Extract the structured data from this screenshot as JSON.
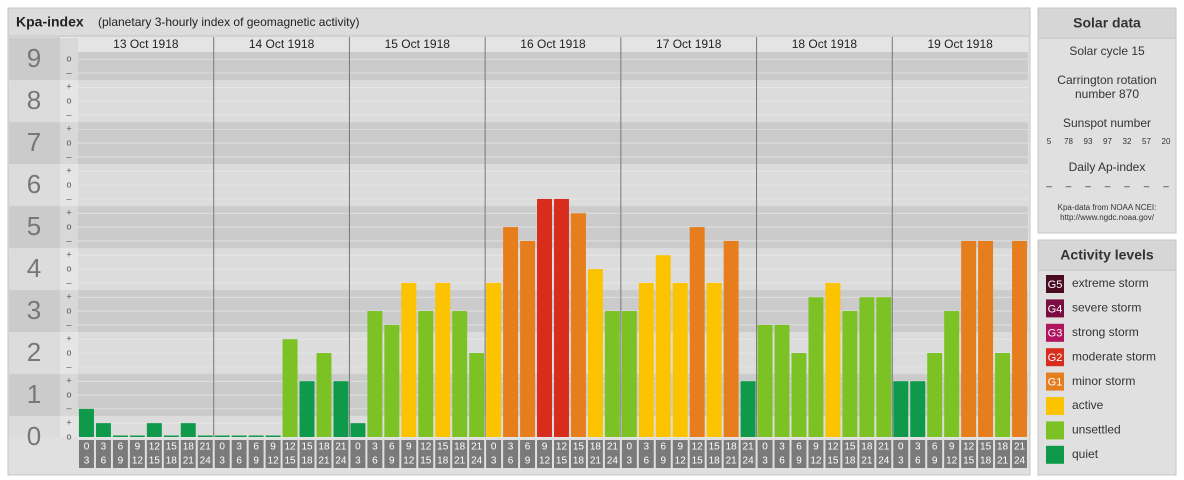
{
  "chart_data": {
    "type": "bar",
    "title": "Kpa-index",
    "subtitle": "(planetary 3-hourly index of geomagnetic activity)",
    "days": [
      "13 Oct 1918",
      "14 Oct 1918",
      "15 Oct 1918",
      "16 Oct 1918",
      "17 Oct 1918",
      "18 Oct 1918",
      "19 Oct 1918"
    ],
    "hours": [
      [
        "0",
        "3"
      ],
      [
        "3",
        "6"
      ],
      [
        "6",
        "9"
      ],
      [
        "9",
        "12"
      ],
      [
        "12",
        "15"
      ],
      [
        "15",
        "18"
      ],
      [
        "18",
        "21"
      ],
      [
        "21",
        "24"
      ]
    ],
    "values": [
      0.67,
      0.33,
      0,
      0,
      0.33,
      0,
      0.33,
      0,
      0,
      0,
      0,
      0,
      2.33,
      1.33,
      2,
      1.33,
      0.33,
      3,
      2.67,
      3.67,
      3,
      3.67,
      3,
      2,
      3.67,
      5,
      4.67,
      5.67,
      5.67,
      5.33,
      4,
      3,
      3,
      3.67,
      4.33,
      3.67,
      5,
      3.67,
      4.67,
      1.33,
      2.67,
      2.67,
      2,
      3.33,
      3.67,
      3,
      3.33,
      3.33,
      1.33,
      1.33,
      2,
      3,
      4.67,
      4.67,
      2,
      4.67
    ],
    "colors": [
      "#0e9a4a",
      "#0e9a4a",
      "#0e9a4a",
      "#0e9a4a",
      "#0e9a4a",
      "#0e9a4a",
      "#0e9a4a",
      "#0e9a4a",
      "#0e9a4a",
      "#0e9a4a",
      "#0e9a4a",
      "#0e9a4a",
      "#7cc224",
      "#0e9a4a",
      "#7cc224",
      "#0e9a4a",
      "#0e9a4a",
      "#7cc224",
      "#7cc224",
      "#fcc400",
      "#7cc224",
      "#fcc400",
      "#7cc224",
      "#7cc224",
      "#fcc400",
      "#e67e1e",
      "#e67e1e",
      "#d82c1c",
      "#d82c1c",
      "#e67e1e",
      "#fcc400",
      "#7cc224",
      "#7cc224",
      "#fcc400",
      "#fcc400",
      "#fcc400",
      "#e67e1e",
      "#fcc400",
      "#e67e1e",
      "#0e9a4a",
      "#7cc224",
      "#7cc224",
      "#7cc224",
      "#7cc224",
      "#fcc400",
      "#7cc224",
      "#7cc224",
      "#7cc224",
      "#0e9a4a",
      "#0e9a4a",
      "#7cc224",
      "#7cc224",
      "#e67e1e",
      "#e67e1e",
      "#7cc224",
      "#e67e1e"
    ],
    "ylim": [
      0,
      9.17
    ],
    "yticks": [
      0,
      1,
      2,
      3,
      4,
      5,
      6,
      7,
      8,
      9
    ],
    "minor_ticks": [
      {
        "value": 0,
        "label": "o"
      },
      {
        "value": 0.33,
        "label": "+"
      },
      {
        "value": 0.67,
        "label": "–"
      },
      {
        "value": 1,
        "label": "o"
      },
      {
        "value": 1.33,
        "label": "+"
      },
      {
        "value": 1.67,
        "label": "–"
      },
      {
        "value": 2,
        "label": "o"
      },
      {
        "value": 2.33,
        "label": "+"
      },
      {
        "value": 2.67,
        "label": "–"
      },
      {
        "value": 3,
        "label": "o"
      },
      {
        "value": 3.33,
        "label": "+"
      },
      {
        "value": 3.67,
        "label": "–"
      },
      {
        "value": 4,
        "label": "o"
      },
      {
        "value": 4.33,
        "label": "+"
      },
      {
        "value": 4.67,
        "label": "–"
      },
      {
        "value": 5,
        "label": "o"
      },
      {
        "value": 5.33,
        "label": "+"
      },
      {
        "value": 5.67,
        "label": "–"
      },
      {
        "value": 6,
        "label": "o"
      },
      {
        "value": 6.33,
        "label": "+"
      },
      {
        "value": 6.67,
        "label": "–"
      },
      {
        "value": 7,
        "label": "o"
      },
      {
        "value": 7.33,
        "label": "+"
      },
      {
        "value": 7.67,
        "label": "–"
      },
      {
        "value": 8,
        "label": "o"
      },
      {
        "value": 8.33,
        "label": "+"
      },
      {
        "value": 8.67,
        "label": "–"
      },
      {
        "value": 9,
        "label": "o"
      }
    ],
    "grid": true
  },
  "solar": {
    "title": "Solar data",
    "cycle": "Solar cycle 15",
    "carrington": [
      "Carrington rotation",
      "number 870"
    ],
    "sunspot_label": "Sunspot number",
    "sunspots": [
      5,
      78,
      93,
      97,
      32,
      57,
      20
    ],
    "ap_label": "Daily Ap-index",
    "ap": [
      "–",
      "–",
      "–",
      "–",
      "–",
      "–",
      "–"
    ],
    "source": [
      "Kpa-data from NOAA NCEI:",
      "http://www.ngdc.noaa.gov/"
    ]
  },
  "levels": {
    "title": "Activity levels",
    "items": [
      {
        "badge": "G5",
        "label": "extreme storm",
        "color": "#4a0a24"
      },
      {
        "badge": "G4",
        "label": "severe storm",
        "color": "#7a0c40"
      },
      {
        "badge": "G3",
        "label": "strong storm",
        "color": "#b0145c"
      },
      {
        "badge": "G2",
        "label": "moderate storm",
        "color": "#d82c1c"
      },
      {
        "badge": "G1",
        "label": "minor storm",
        "color": "#e67e1e"
      },
      {
        "badge": null,
        "label": "active",
        "color": "#fcc400"
      },
      {
        "badge": null,
        "label": "unsettled",
        "color": "#7cc224"
      },
      {
        "badge": null,
        "label": "quiet",
        "color": "#0e9a4a"
      }
    ]
  }
}
